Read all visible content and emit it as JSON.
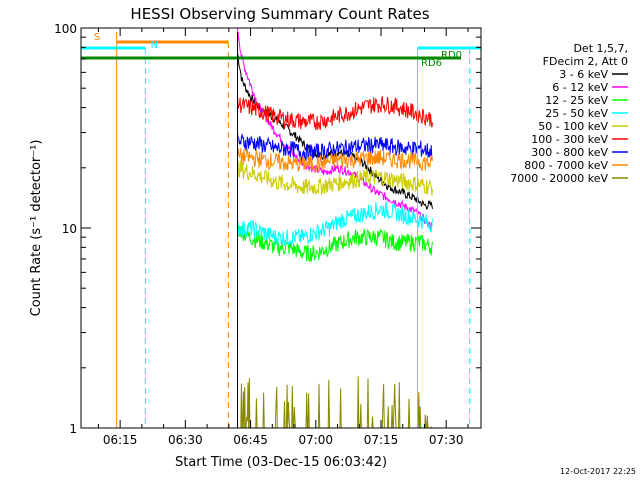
{
  "chart_data": {
    "type": "line",
    "title": "HESSI Observing Summary Count Rates",
    "xlabel": "Start Time (03-Dec-15 06:03:42)",
    "ylabel": "Count Rate (s⁻¹ detector⁻¹)",
    "timestamp": "12-Oct-2017 22:25",
    "x_range_minutes": [
      6.0,
      98.0
    ],
    "x_ticks": [
      {
        "label": "06:15",
        "min": 15
      },
      {
        "label": "06:30",
        "min": 30
      },
      {
        "label": "06:45",
        "min": 45
      },
      {
        "label": "07:00",
        "min": 60
      },
      {
        "label": "07:15",
        "min": 75
      },
      {
        "label": "07:30",
        "min": 90
      }
    ],
    "y_scale": "log",
    "ylim": [
      1,
      100
    ],
    "y_ticks": [
      {
        "label": "1",
        "value": 1
      },
      {
        "label": "10",
        "value": 10
      },
      {
        "label": "100",
        "value": 100
      }
    ],
    "legend_header": [
      "Det 1,5,7,",
      "FDecim 2, Att 0"
    ],
    "series": [
      {
        "name": "3 - 6 keV",
        "color": "#000000",
        "points": [
          [
            42,
            75
          ],
          [
            43,
            55
          ],
          [
            45,
            45
          ],
          [
            47,
            40
          ],
          [
            50,
            36
          ],
          [
            53,
            32
          ],
          [
            56,
            28
          ],
          [
            59,
            24
          ],
          [
            62,
            23
          ],
          [
            65,
            24
          ],
          [
            68,
            23
          ],
          [
            71,
            21
          ],
          [
            74,
            18
          ],
          [
            77,
            16
          ],
          [
            80,
            15
          ],
          [
            83,
            14
          ],
          [
            85,
            13
          ],
          [
            87,
            13
          ]
        ]
      },
      {
        "name": "6 - 12 keV",
        "color": "#ff00ff",
        "points": [
          [
            42,
            100
          ],
          [
            43,
            70
          ],
          [
            45,
            52
          ],
          [
            47,
            40
          ],
          [
            50,
            32
          ],
          [
            53,
            26
          ],
          [
            56,
            22
          ],
          [
            59,
            20
          ],
          [
            62,
            19
          ],
          [
            65,
            20
          ],
          [
            68,
            19
          ],
          [
            71,
            17
          ],
          [
            74,
            15
          ],
          [
            77,
            14
          ],
          [
            80,
            13
          ],
          [
            83,
            12
          ],
          [
            85,
            11
          ],
          [
            87,
            10
          ]
        ]
      },
      {
        "name": "12 - 25 keV",
        "color": "#00ff00",
        "points": [
          [
            42,
            10
          ],
          [
            45,
            9
          ],
          [
            48,
            8.5
          ],
          [
            51,
            8
          ],
          [
            54,
            8
          ],
          [
            57,
            7.5
          ],
          [
            60,
            7.5
          ],
          [
            63,
            8
          ],
          [
            66,
            8.5
          ],
          [
            69,
            9
          ],
          [
            72,
            9
          ],
          [
            75,
            9
          ],
          [
            78,
            8.5
          ],
          [
            81,
            8.5
          ],
          [
            84,
            8.5
          ],
          [
            87,
            8
          ]
        ]
      },
      {
        "name": "25 - 50 keV",
        "color": "#00ffff",
        "points": [
          [
            42,
            10
          ],
          [
            45,
            10
          ],
          [
            48,
            9.5
          ],
          [
            51,
            9
          ],
          [
            54,
            9
          ],
          [
            57,
            9
          ],
          [
            60,
            9.5
          ],
          [
            63,
            10
          ],
          [
            66,
            11
          ],
          [
            69,
            11.5
          ],
          [
            72,
            12
          ],
          [
            75,
            12.5
          ],
          [
            78,
            12
          ],
          [
            81,
            11.5
          ],
          [
            84,
            11
          ],
          [
            87,
            10.5
          ]
        ]
      },
      {
        "name": "50 - 100 keV",
        "color": "#cccc00",
        "points": [
          [
            42,
            20
          ],
          [
            45,
            19
          ],
          [
            48,
            18
          ],
          [
            51,
            17
          ],
          [
            54,
            16.5
          ],
          [
            57,
            16
          ],
          [
            60,
            16
          ],
          [
            63,
            16.5
          ],
          [
            66,
            17
          ],
          [
            69,
            17.5
          ],
          [
            72,
            18
          ],
          [
            75,
            18
          ],
          [
            78,
            17.5
          ],
          [
            81,
            17
          ],
          [
            84,
            16.5
          ],
          [
            87,
            16
          ]
        ]
      },
      {
        "name": "100 - 300 keV",
        "color": "#ff0000",
        "points": [
          [
            42,
            42
          ],
          [
            45,
            40
          ],
          [
            48,
            38
          ],
          [
            51,
            36
          ],
          [
            54,
            35
          ],
          [
            57,
            34
          ],
          [
            60,
            34
          ],
          [
            63,
            35
          ],
          [
            66,
            37
          ],
          [
            69,
            39
          ],
          [
            72,
            41
          ],
          [
            75,
            42
          ],
          [
            78,
            41
          ],
          [
            81,
            39
          ],
          [
            84,
            37
          ],
          [
            87,
            35
          ]
        ]
      },
      {
        "name": "300 - 800 keV",
        "color": "#0000ff",
        "points": [
          [
            42,
            27
          ],
          [
            45,
            27
          ],
          [
            48,
            26
          ],
          [
            51,
            25
          ],
          [
            54,
            25
          ],
          [
            57,
            24
          ],
          [
            60,
            24
          ],
          [
            63,
            24.5
          ],
          [
            66,
            25
          ],
          [
            69,
            25.5
          ],
          [
            72,
            26
          ],
          [
            75,
            26
          ],
          [
            78,
            25.5
          ],
          [
            81,
            25
          ],
          [
            84,
            25
          ],
          [
            87,
            24
          ]
        ]
      },
      {
        "name": "800 - 7000 keV",
        "color": "#ff8800",
        "points": [
          [
            42,
            23
          ],
          [
            45,
            22.5
          ],
          [
            48,
            22
          ],
          [
            51,
            21.5
          ],
          [
            54,
            21
          ],
          [
            57,
            21
          ],
          [
            60,
            21
          ],
          [
            63,
            21.5
          ],
          [
            66,
            22
          ],
          [
            69,
            22
          ],
          [
            72,
            22.5
          ],
          [
            75,
            22.5
          ],
          [
            78,
            22
          ],
          [
            81,
            22
          ],
          [
            84,
            21.5
          ],
          [
            87,
            21
          ]
        ]
      },
      {
        "name": "7000 - 20000 keV",
        "color": "#888800",
        "points": [
          [
            42,
            1.5
          ],
          [
            46,
            1
          ],
          [
            75,
            1.6
          ],
          [
            87,
            1
          ]
        ]
      }
    ],
    "flags": [
      {
        "label": "S",
        "color": "#ff8800"
      },
      {
        "label": "N",
        "color": "#00ffff"
      },
      {
        "label": "RD6",
        "color": "#008800"
      },
      {
        "label": "RD0",
        "color": "#008800"
      }
    ]
  }
}
